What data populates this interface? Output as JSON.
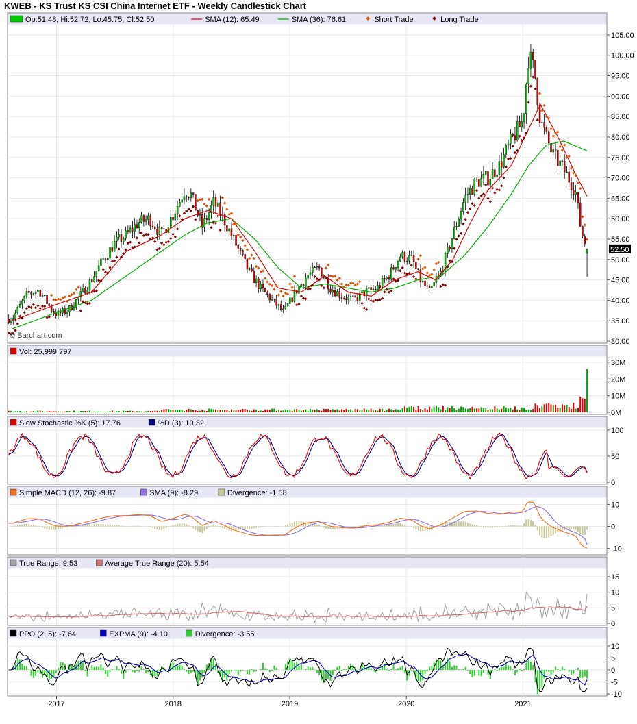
{
  "chart_title": "KWEB - KS Trust KS CSI China Internet ETF - Weekly Candlestick Chart",
  "watermark": "© Barchart.com",
  "last_price_label": "52.50",
  "x_axis": {
    "tick_labels": [
      "2017",
      "2018",
      "2019",
      "2020",
      "2021"
    ]
  },
  "panels": [
    {
      "id": "price",
      "legend": [
        {
          "label": "Op:51.48, Hi:52.72, Lo:45.75, Cl:52.50",
          "color": "#00cc00",
          "kind": "box"
        },
        {
          "label": "SMA (12): 65.49",
          "color": "#e00000",
          "kind": "line"
        },
        {
          "label": "SMA (36): 76.61",
          "color": "#00b000",
          "kind": "line"
        },
        {
          "label": "Short Trade",
          "color": "#e05000",
          "kind": "dot"
        },
        {
          "label": "Long Trade",
          "color": "#800000",
          "kind": "dot"
        }
      ],
      "y_ticks": [
        "105.00",
        "100.00",
        "95.00",
        "90.00",
        "85.00",
        "80.00",
        "75.00",
        "70.00",
        "65.00",
        "60.00",
        "55.00",
        "50.00",
        "45.00",
        "40.00",
        "35.00",
        "30.00"
      ]
    },
    {
      "id": "volume",
      "legend": [
        {
          "label": "Vol: 25,999,797",
          "color": "#e00000",
          "kind": "box"
        }
      ],
      "y_ticks": [
        "30M",
        "20M",
        "10M",
        "0M"
      ]
    },
    {
      "id": "stoch",
      "legend": [
        {
          "label": "Slow Stochastic %K (5): 17.76",
          "color": "#e00000",
          "kind": "box"
        },
        {
          "label": "%D (3): 19.32",
          "color": "#000080",
          "kind": "box"
        }
      ],
      "y_ticks": [
        "100",
        "50",
        "0"
      ]
    },
    {
      "id": "macd",
      "legend": [
        {
          "label": "Simple MACD (12, 26): -9.87",
          "color": "#f07020",
          "kind": "box"
        },
        {
          "label": "SMA (9): -8.29",
          "color": "#9070e0",
          "kind": "box"
        },
        {
          "label": "Divergence: -1.58",
          "color": "#c8c89a",
          "kind": "box"
        }
      ],
      "y_ticks": [
        "10",
        "0",
        "-10"
      ]
    },
    {
      "id": "atr",
      "legend": [
        {
          "label": "True Range: 9.53",
          "color": "#a0a0a0",
          "kind": "box"
        },
        {
          "label": "Average True Range (20): 5.54",
          "color": "#d07070",
          "kind": "box"
        }
      ],
      "y_ticks": [
        "15",
        "10",
        "5",
        "0"
      ]
    },
    {
      "id": "ppo",
      "legend": [
        {
          "label": "PPO (2, 5): -7.64",
          "color": "#000000",
          "kind": "box"
        },
        {
          "label": "EXPMA (9): -4.10",
          "color": "#0000c0",
          "kind": "box"
        },
        {
          "label": "Divergence: -3.55",
          "color": "#30d030",
          "kind": "box"
        }
      ],
      "y_ticks": [
        "10",
        "5",
        "0",
        "-5",
        "-10"
      ]
    }
  ],
  "chart_data": {
    "type": "candlestick",
    "frequency": "weekly",
    "x_range": [
      "2016-08",
      "2021-08"
    ],
    "price": {
      "ylim": [
        30,
        107
      ],
      "close_path": [
        [
          "2016.62",
          35.5
        ],
        [
          "2016.75",
          41.5
        ],
        [
          "2016.85",
          42.5
        ],
        [
          "2016.95",
          38
        ],
        [
          "2017.0",
          36.5
        ],
        [
          "2017.1",
          37.5
        ],
        [
          "2017.2",
          41
        ],
        [
          "2017.3",
          45
        ],
        [
          "2017.4",
          50
        ],
        [
          "2017.5",
          54
        ],
        [
          "2017.6",
          56
        ],
        [
          "2017.7",
          59
        ],
        [
          "2017.8",
          60
        ],
        [
          "2017.9",
          56
        ],
        [
          "2018.0",
          61
        ],
        [
          "2018.1",
          67
        ],
        [
          "2018.15",
          66
        ],
        [
          "2018.25",
          58
        ],
        [
          "2018.35",
          64
        ],
        [
          "2018.45",
          59
        ],
        [
          "2018.55",
          53
        ],
        [
          "2018.65",
          47
        ],
        [
          "2018.75",
          43
        ],
        [
          "2018.85",
          40
        ],
        [
          "2018.95",
          37
        ],
        [
          "2019.05",
          42
        ],
        [
          "2019.15",
          46
        ],
        [
          "2019.25",
          48
        ],
        [
          "2019.35",
          43
        ],
        [
          "2019.45",
          41
        ],
        [
          "2019.55",
          40
        ],
        [
          "2019.65",
          42
        ],
        [
          "2019.75",
          43
        ],
        [
          "2019.85",
          46
        ],
        [
          "2019.95",
          51
        ],
        [
          "2020.05",
          50
        ],
        [
          "2020.12",
          45
        ],
        [
          "2020.2",
          42
        ],
        [
          "2020.3",
          47
        ],
        [
          "2020.4",
          56
        ],
        [
          "2020.5",
          65
        ],
        [
          "2020.6",
          69
        ],
        [
          "2020.7",
          70
        ],
        [
          "2020.8",
          73
        ],
        [
          "2020.9",
          79
        ],
        [
          "2021.0",
          84
        ],
        [
          "2021.05",
          100
        ],
        [
          "2021.1",
          96
        ],
        [
          "2021.15",
          84
        ],
        [
          "2021.25",
          76
        ],
        [
          "2021.35",
          72
        ],
        [
          "2021.45",
          67
        ],
        [
          "2021.5",
          57
        ],
        [
          "2021.55",
          52.5
        ]
      ],
      "sma12_path": [
        [
          "2016.62",
          35
        ],
        [
          "2017.0",
          39
        ],
        [
          "2017.3",
          42
        ],
        [
          "2017.6",
          52
        ],
        [
          "2017.9",
          56
        ],
        [
          "2018.1",
          60
        ],
        [
          "2018.3",
          62
        ],
        [
          "2018.5",
          60
        ],
        [
          "2018.7",
          52
        ],
        [
          "2018.9",
          43
        ],
        [
          "2019.1",
          42
        ],
        [
          "2019.3",
          46
        ],
        [
          "2019.5",
          42
        ],
        [
          "2019.7",
          41
        ],
        [
          "2019.9",
          45
        ],
        [
          "2020.1",
          47
        ],
        [
          "2020.25",
          45
        ],
        [
          "2020.4",
          50
        ],
        [
          "2020.55",
          59
        ],
        [
          "2020.7",
          67
        ],
        [
          "2020.9",
          73
        ],
        [
          "2021.05",
          82
        ],
        [
          "2021.15",
          88
        ],
        [
          "2021.3",
          80
        ],
        [
          "2021.45",
          71
        ],
        [
          "2021.55",
          65.49
        ]
      ],
      "sma36_path": [
        [
          "2016.62",
          33
        ],
        [
          "2017.0",
          37
        ],
        [
          "2017.3",
          40
        ],
        [
          "2017.6",
          46
        ],
        [
          "2017.9",
          52
        ],
        [
          "2018.1",
          56
        ],
        [
          "2018.3",
          59
        ],
        [
          "2018.5",
          60
        ],
        [
          "2018.7",
          55
        ],
        [
          "2018.9",
          48
        ],
        [
          "2019.1",
          43
        ],
        [
          "2019.3",
          44
        ],
        [
          "2019.5",
          43
        ],
        [
          "2019.7",
          42
        ],
        [
          "2019.9",
          43
        ],
        [
          "2020.1",
          45
        ],
        [
          "2020.3",
          46
        ],
        [
          "2020.5",
          51
        ],
        [
          "2020.7",
          58
        ],
        [
          "2020.9",
          66
        ],
        [
          "2021.05",
          73
        ],
        [
          "2021.2",
          78
        ],
        [
          "2021.35",
          79
        ],
        [
          "2021.55",
          76.61
        ]
      ],
      "last": {
        "open": 51.48,
        "high": 52.72,
        "low": 45.75,
        "close": 52.5
      }
    },
    "volume": {
      "ylim": [
        0,
        32
      ],
      "unit": "M",
      "last": 25.999797
    },
    "stochastic": {
      "ylim": [
        0,
        100
      ],
      "k_last": 17.76,
      "d_last": 19.32
    },
    "macd": {
      "ylim": [
        -12,
        12
      ],
      "macd_last": -9.87,
      "signal_last": -8.29,
      "divergence_last": -1.58
    },
    "atr": {
      "ylim": [
        0,
        17
      ],
      "tr_last": 9.53,
      "atr_last": 5.54
    },
    "ppo": {
      "ylim": [
        -10,
        12
      ],
      "ppo_last": -7.64,
      "expma_last": -4.1,
      "divergence_last": -3.55
    }
  }
}
